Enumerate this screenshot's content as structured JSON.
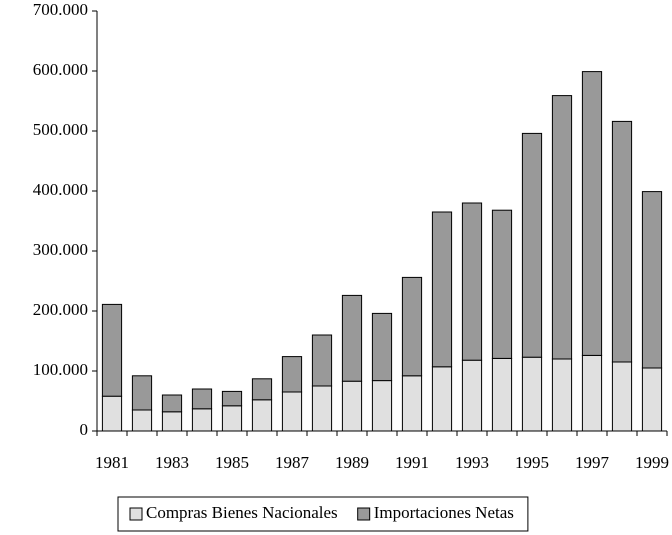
{
  "chart_data": {
    "type": "stacked_bar",
    "categories": [
      "1981",
      null,
      "1983",
      null,
      "1985",
      null,
      "1987",
      null,
      "1989",
      null,
      "1991",
      null,
      "1993",
      null,
      "1995",
      null,
      "1997",
      null,
      "1999"
    ],
    "series": [
      {
        "name": "Compras Bienes Nacionales",
        "color": "#e0e0e0",
        "values": [
          58000,
          35000,
          32000,
          37000,
          42000,
          52000,
          65000,
          75000,
          83000,
          84000,
          92000,
          107000,
          118000,
          121000,
          123000,
          120000,
          126000,
          115000,
          105000
        ]
      },
      {
        "name": "Importaciones Netas",
        "color": "#999999",
        "values": [
          153000,
          57000,
          28000,
          33000,
          24000,
          35000,
          59000,
          85000,
          143000,
          112000,
          164000,
          258000,
          262000,
          247000,
          373000,
          439000,
          473000,
          401000,
          294000
        ]
      }
    ],
    "ylim": [
      0,
      700000
    ],
    "yticks": [
      0,
      {
        "value": 100000,
        "label": "100.000"
      },
      {
        "value": 200000,
        "label": "200.000"
      },
      {
        "value": 300000,
        "label": "300.000"
      },
      {
        "value": 400000,
        "label": "400.000"
      },
      {
        "value": 500000,
        "label": "500.000"
      },
      {
        "value": 600000,
        "label": "600.000"
      },
      {
        "value": 700000,
        "label": "700.000"
      }
    ],
    "grid": false,
    "legend": "bottom"
  }
}
